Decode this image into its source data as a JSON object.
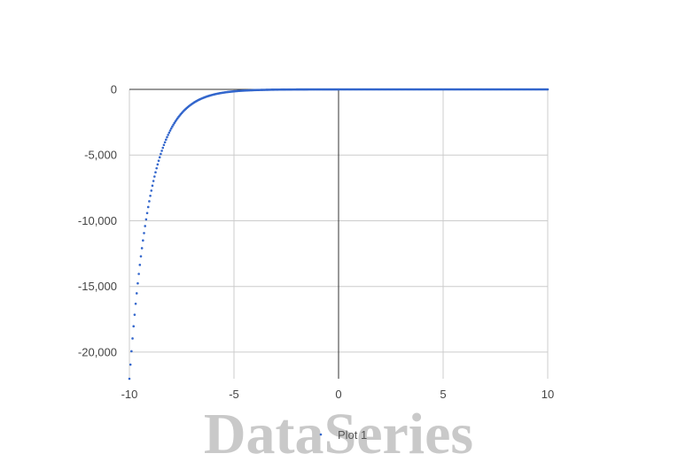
{
  "watermark": "DataSeries",
  "chart_data": {
    "type": "scatter",
    "title": "",
    "xlabel": "",
    "ylabel": "",
    "xlim": [
      -10,
      10
    ],
    "ylim": [
      -22026,
      0
    ],
    "x_ticks": [
      -10,
      -5,
      0,
      5,
      10
    ],
    "y_ticks": [
      0,
      -5000,
      -10000,
      -15000,
      -20000
    ],
    "x_tick_labels": [
      "-10",
      "-5",
      "0",
      "5",
      "10"
    ],
    "y_tick_labels": [
      "0",
      "-5,000",
      "-10,000",
      "-15,000",
      "-20,000"
    ],
    "grid": true,
    "legend": "bottom-center",
    "series": [
      {
        "name": "Plot 1",
        "color": "#3366cc",
        "function": "-exp(-x)",
        "x_start": -10,
        "x_end": 10,
        "points": 401
      }
    ]
  }
}
